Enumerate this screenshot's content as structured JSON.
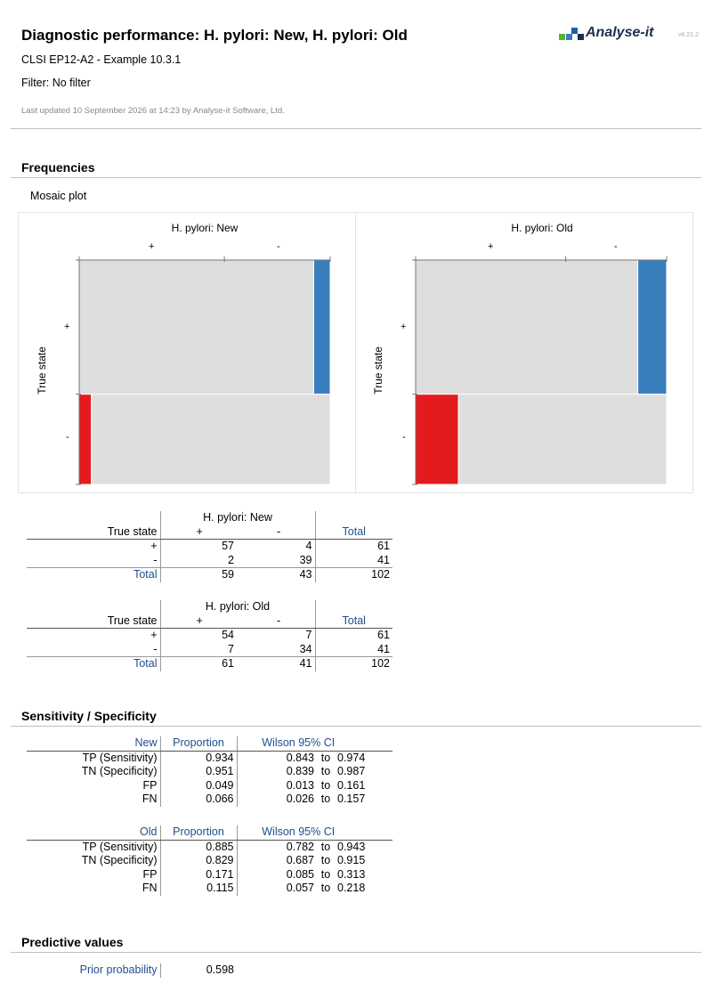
{
  "header": {
    "title": "Diagnostic performance: H. pylori: New, H. pylori: Old",
    "subtitle": "CLSI EP12-A2 - Example 10.3.1",
    "filter": "Filter: No filter",
    "updated": "Last updated 10 September 2026 at 14:23 by Analyse-it Software, Ltd.",
    "logo_text": "Analyse-it",
    "version": "v6.21.2"
  },
  "colors": {
    "positive_bar": "#3a7fbd",
    "negative_bar": "#e31b1f",
    "cell": "#dedede",
    "header_blue": "#1f4e8c"
  },
  "frequencies": {
    "heading": "Frequencies",
    "mosaic_caption": "Mosaic plot",
    "y_axis_label": "True state",
    "plots": [
      {
        "title": "H. pylori: New",
        "x_pos": "+",
        "x_neg": "-",
        "y_pos": "+",
        "y_neg": "-"
      },
      {
        "title": "H. pylori: Old",
        "x_pos": "+",
        "x_neg": "-",
        "y_pos": "+",
        "y_neg": "-"
      }
    ],
    "tables": [
      {
        "group": "H. pylori: New",
        "row_header": "True state",
        "col_pos": "+",
        "col_neg": "-",
        "total_label": "Total",
        "rows": [
          {
            "label": "+",
            "pos": "57",
            "neg": "4",
            "total": "61"
          },
          {
            "label": "-",
            "pos": "2",
            "neg": "39",
            "total": "41"
          }
        ],
        "totals": {
          "label": "Total",
          "pos": "59",
          "neg": "43",
          "total": "102"
        }
      },
      {
        "group": "H. pylori: Old",
        "row_header": "True state",
        "col_pos": "+",
        "col_neg": "-",
        "total_label": "Total",
        "rows": [
          {
            "label": "+",
            "pos": "54",
            "neg": "7",
            "total": "61"
          },
          {
            "label": "-",
            "pos": "7",
            "neg": "34",
            "total": "41"
          }
        ],
        "totals": {
          "label": "Total",
          "pos": "61",
          "neg": "41",
          "total": "102"
        }
      }
    ]
  },
  "sensitivity": {
    "heading": "Sensitivity / Specificity",
    "tables": [
      {
        "name": "New",
        "col_prop": "Proportion",
        "col_ci": "Wilson 95% CI",
        "rows": [
          {
            "label": "TP (Sensitivity)",
            "prop": "0.934",
            "lo": "0.843",
            "to": "to",
            "hi": "0.974"
          },
          {
            "label": "TN (Specificity)",
            "prop": "0.951",
            "lo": "0.839",
            "to": "to",
            "hi": "0.987"
          },
          {
            "label": "FP",
            "prop": "0.049",
            "lo": "0.013",
            "to": "to",
            "hi": "0.161"
          },
          {
            "label": "FN",
            "prop": "0.066",
            "lo": "0.026",
            "to": "to",
            "hi": "0.157"
          }
        ]
      },
      {
        "name": "Old",
        "col_prop": "Proportion",
        "col_ci": "Wilson 95% CI",
        "rows": [
          {
            "label": "TP (Sensitivity)",
            "prop": "0.885",
            "lo": "0.782",
            "to": "to",
            "hi": "0.943"
          },
          {
            "label": "TN (Specificity)",
            "prop": "0.829",
            "lo": "0.687",
            "to": "to",
            "hi": "0.915"
          },
          {
            "label": "FP",
            "prop": "0.171",
            "lo": "0.085",
            "to": "to",
            "hi": "0.313"
          },
          {
            "label": "FN",
            "prop": "0.115",
            "lo": "0.057",
            "to": "to",
            "hi": "0.218"
          }
        ]
      }
    ]
  },
  "predictive": {
    "heading": "Predictive values",
    "prior_label": "Prior probability",
    "prior_value": "0.598"
  }
}
